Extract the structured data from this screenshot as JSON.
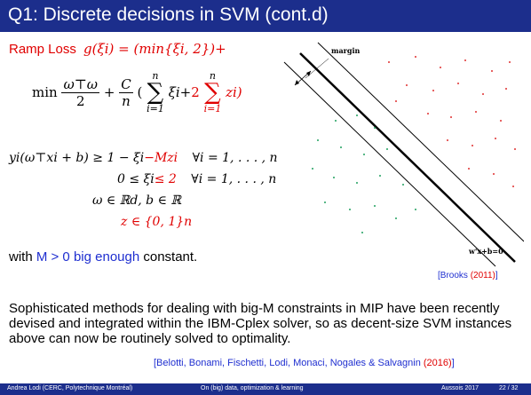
{
  "title": "Q1: Discrete decisions in SVM (cont.d)",
  "ramp_loss": {
    "label": "Ramp Loss",
    "formula": "g(ξi) = (min{ξi, 2})+"
  },
  "objective": {
    "min": "min",
    "frac1_num": "ω⊤ω",
    "frac1_den": "2",
    "plus": "+",
    "frac2_num": "C",
    "frac2_den": "n",
    "sum_top": "n",
    "sum_bot": "i=1",
    "sum_body": "ξi+",
    "two": "2",
    "sum2_top": "n",
    "sum2_bot": "i=1",
    "sum2_body": "zi)",
    "open_paren": "("
  },
  "constraints": {
    "c1_left": "yi(ω⊤xi + b) ≥ 1 − ξi",
    "c1_red": "−Mzi",
    "c1_right": "∀i = 1, . . . , n",
    "c2_left": "0 ≤ ξi",
    "c2_red": "≤ 2",
    "c2_right": "∀i = 1, . . . , n",
    "c3": "ω ∈ ℝd, b ∈ ℝ",
    "c4": "z ∈ {0, 1}n"
  },
  "with_line": {
    "prefix": "with ",
    "blue": "M > 0 big enough",
    "suffix": " constant."
  },
  "diagram": {
    "margin_label": "margin",
    "hyperplane_label": "w'x+b=0"
  },
  "citation1": {
    "open": "[Brooks ",
    "year": "(2011)",
    "close": "]"
  },
  "paragraph": "Sophisticated methods for dealing with big-M constraints in MIP have been recently devised and integrated within the IBM-Cplex solver, so as decent-size SVM instances above can now be routinely solved to optimality.",
  "citation2": {
    "open": "[Belotti, Bonami, Fischetti, Lodi, Monaci, Nogales & Salvagnin ",
    "year": "(2016)",
    "close": "]"
  },
  "footer": {
    "author": "Andrea Lodi  (CERC, Polytechnique Montréal)",
    "talk": "On (big) data, optimization & learning",
    "venue": "Aussois 2017",
    "page": "22 / 32"
  },
  "colors": {
    "title_bar": "#1c2e8c",
    "red": "#e00000",
    "blue": "#1f2fd0",
    "red_points": "#e03030",
    "green_points": "#20a060"
  }
}
